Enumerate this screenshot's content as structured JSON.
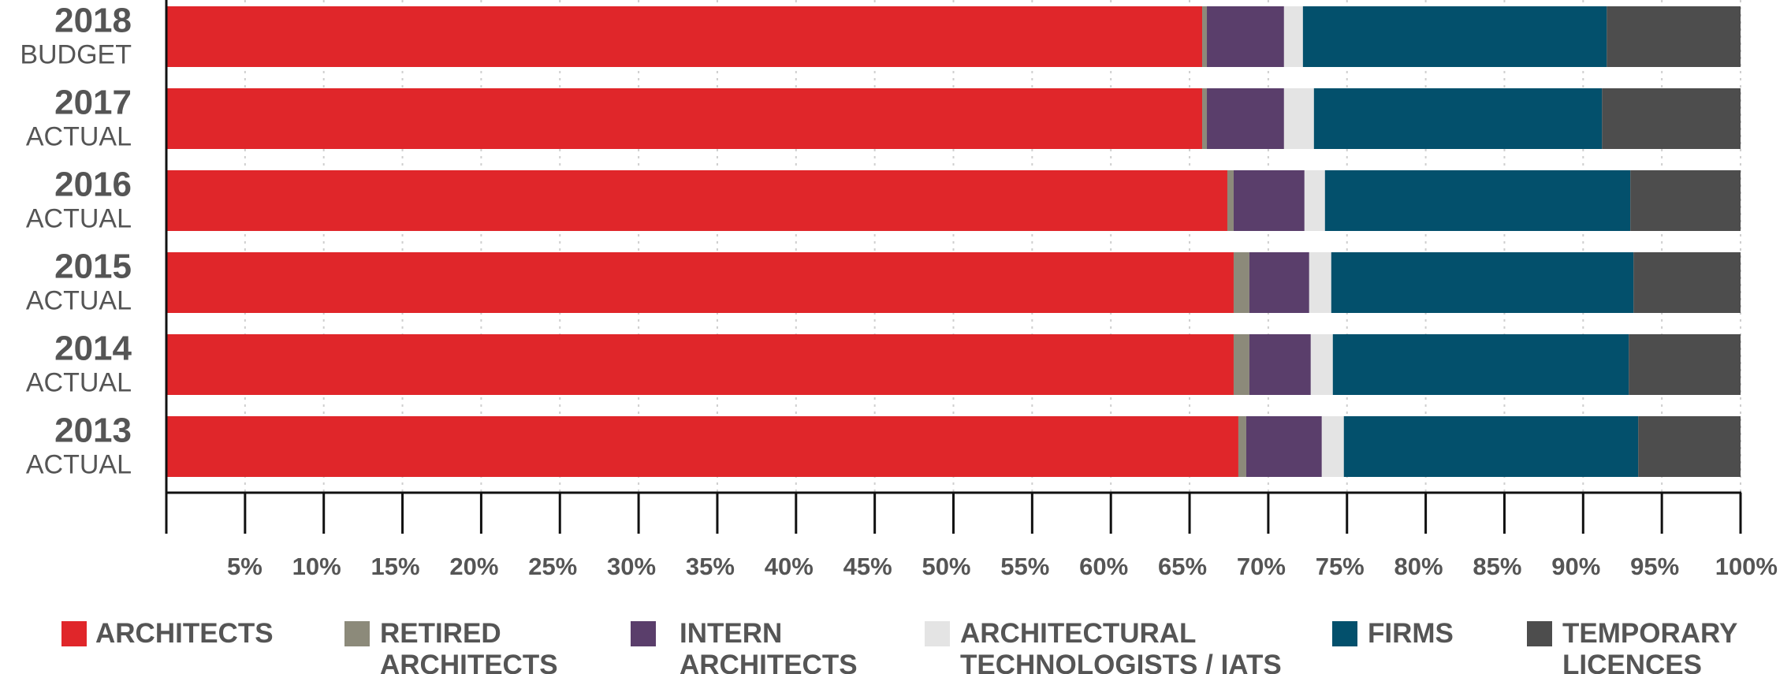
{
  "chart_data": {
    "type": "bar",
    "orientation": "horizontal",
    "stacked": "100%",
    "title": "",
    "xlabel": "",
    "ylabel": "",
    "xlim": [
      0,
      100
    ],
    "grid": "vertical-dotted",
    "legend_position": "bottom",
    "categories": [
      {
        "year": "2018",
        "label": "BUDGET"
      },
      {
        "year": "2017",
        "label": "ACTUAL"
      },
      {
        "year": "2016",
        "label": "ACTUAL"
      },
      {
        "year": "2015",
        "label": "ACTUAL"
      },
      {
        "year": "2014",
        "label": "ACTUAL"
      },
      {
        "year": "2013",
        "label": "ACTUAL"
      }
    ],
    "x_ticks": [
      "5%",
      "10%",
      "15%",
      "20%",
      "25%",
      "30%",
      "35%",
      "40%",
      "45%",
      "50%",
      "55%",
      "60%",
      "65%",
      "70%",
      "75%",
      "80%",
      "85%",
      "90%",
      "95%",
      "100%"
    ],
    "series": [
      {
        "name": "ARCHITECTS",
        "legend_lines": [
          "ARCHITECTS"
        ],
        "color": "#e0262a",
        "values": [
          65.8,
          65.8,
          67.4,
          67.8,
          67.8,
          68.1
        ]
      },
      {
        "name": "RETIRED ARCHITECTS",
        "legend_lines": [
          "RETIRED",
          "ARCHITECTS"
        ],
        "color": "#8c8a7a",
        "values": [
          0.3,
          0.3,
          0.4,
          1.0,
          1.0,
          0.5
        ]
      },
      {
        "name": "INTERN ARCHITECTS",
        "legend_lines": [
          "INTERN",
          "ARCHITECTS"
        ],
        "color": "#5a3e6b",
        "values": [
          4.9,
          4.9,
          4.5,
          3.8,
          3.9,
          4.8
        ]
      },
      {
        "name": "ARCHITECTURAL TECHNOLOGISTS / IATS",
        "legend_lines": [
          "ARCHITECTURAL",
          "TECHNOLOGISTS / IATS"
        ],
        "color": "#e4e4e4",
        "values": [
          1.2,
          1.9,
          1.3,
          1.4,
          1.4,
          1.4
        ]
      },
      {
        "name": "FIRMS",
        "legend_lines": [
          "FIRMS"
        ],
        "color": "#03506c",
        "values": [
          19.3,
          18.3,
          19.4,
          19.2,
          18.8,
          18.7
        ]
      },
      {
        "name": "TEMPORARY LICENCES",
        "legend_lines": [
          "TEMPORARY",
          "LICENCES"
        ],
        "color": "#4d4d4d",
        "values": [
          8.5,
          8.8,
          7.0,
          6.8,
          7.1,
          6.5
        ]
      }
    ]
  }
}
